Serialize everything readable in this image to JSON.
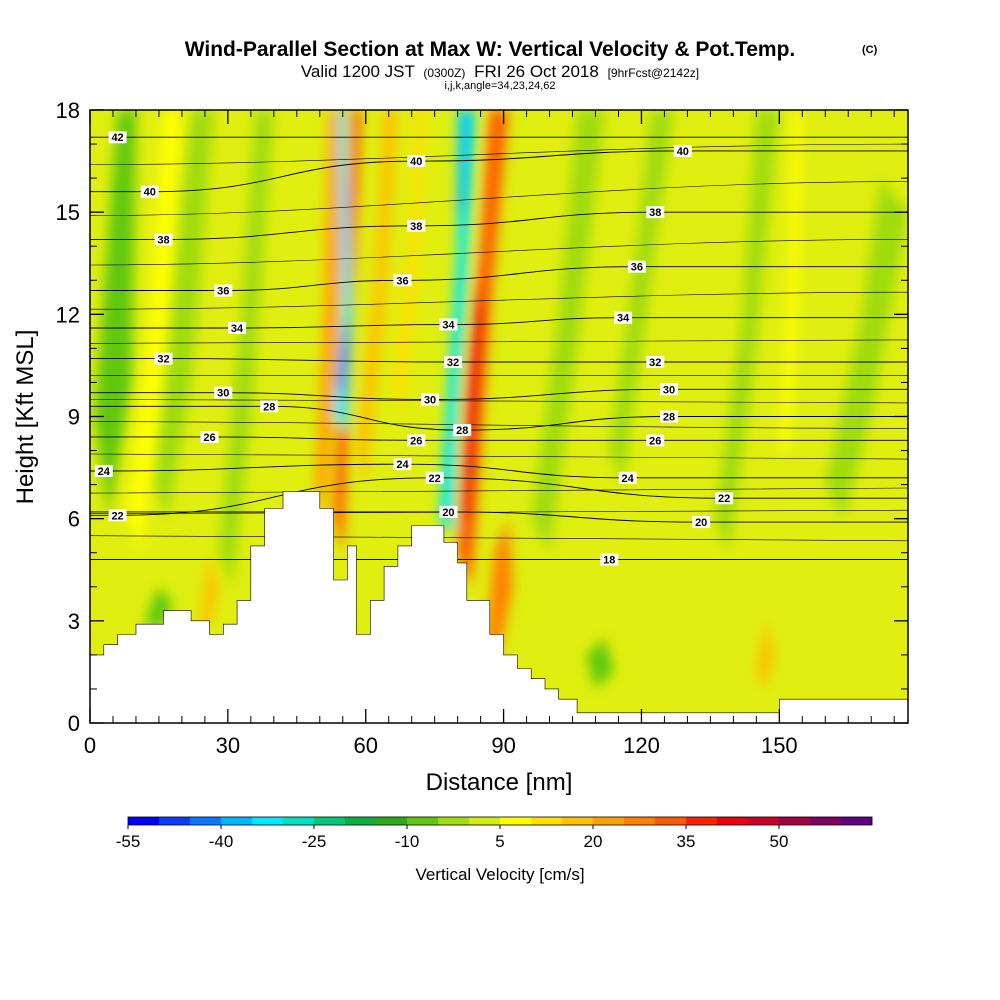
{
  "title": {
    "main": "Wind-Parallel Section at Max W: Vertical Velocity & Pot.Temp.",
    "copyright": "(C)",
    "line2_a": "Valid 1200 JST",
    "line2_b": "(0300Z)",
    "line2_c": "FRI 26 Oct 2018",
    "line2_d": "[9hrFcst@2142z]",
    "line3": "i,j,k,angle=34,23,24,62"
  },
  "chart_data": {
    "type": "heatmap",
    "xlabel": "Distance [nm]",
    "ylabel": "Height [Kft MSL]",
    "xlim": [
      0,
      178
    ],
    "ylim": [
      0,
      18
    ],
    "x_ticks": [
      0,
      30,
      60,
      90,
      120,
      150
    ],
    "y_ticks": [
      0,
      3,
      6,
      9,
      12,
      15,
      18
    ],
    "colorbar": {
      "label": "Vertical Velocity [cm/s]",
      "levels": [
        -55,
        -50,
        -45,
        -40,
        -35,
        -30,
        -25,
        -20,
        -15,
        -10,
        -5,
        0,
        5,
        10,
        15,
        20,
        25,
        30,
        35,
        40,
        45,
        50,
        55,
        60
      ],
      "tick_labels": [
        -55,
        -40,
        -25,
        -10,
        5,
        20,
        35,
        50
      ],
      "colors": [
        "#0000ff",
        "#0a3cff",
        "#0a78ff",
        "#00b4ff",
        "#00e8ff",
        "#00e0c0",
        "#00c878",
        "#10b040",
        "#30a820",
        "#60c810",
        "#a0dc10",
        "#d0ec10",
        "#ffff00",
        "#ffe000",
        "#ffc000",
        "#ffa000",
        "#ff8000",
        "#ff5a00",
        "#ff2000",
        "#e80010",
        "#c80028",
        "#a00040",
        "#800060",
        "#600080"
      ]
    },
    "terrain": [
      [
        0,
        2.0
      ],
      [
        3,
        2.0
      ],
      [
        3,
        2.3
      ],
      [
        6,
        2.3
      ],
      [
        6,
        2.6
      ],
      [
        10,
        2.6
      ],
      [
        10,
        2.9
      ],
      [
        16,
        2.9
      ],
      [
        16,
        3.3
      ],
      [
        22,
        3.3
      ],
      [
        22,
        3.0
      ],
      [
        26,
        3.0
      ],
      [
        26,
        2.6
      ],
      [
        29,
        2.6
      ],
      [
        29,
        2.9
      ],
      [
        32,
        2.9
      ],
      [
        32,
        3.6
      ],
      [
        35,
        3.6
      ],
      [
        35,
        5.2
      ],
      [
        38,
        5.2
      ],
      [
        38,
        6.3
      ],
      [
        42,
        6.3
      ],
      [
        42,
        6.8
      ],
      [
        47,
        6.8
      ],
      [
        47,
        6.8
      ],
      [
        50,
        6.8
      ],
      [
        50,
        6.3
      ],
      [
        53,
        6.3
      ],
      [
        53,
        4.2
      ],
      [
        56,
        4.2
      ],
      [
        56,
        5.2
      ],
      [
        58,
        5.2
      ],
      [
        58,
        2.6
      ],
      [
        61,
        2.6
      ],
      [
        61,
        3.6
      ],
      [
        64,
        3.6
      ],
      [
        64,
        4.6
      ],
      [
        67,
        4.6
      ],
      [
        67,
        5.2
      ],
      [
        70,
        5.2
      ],
      [
        70,
        5.8
      ],
      [
        74,
        5.8
      ],
      [
        74,
        5.8
      ],
      [
        77,
        5.8
      ],
      [
        77,
        5.3
      ],
      [
        80,
        5.3
      ],
      [
        80,
        4.7
      ],
      [
        82,
        4.7
      ],
      [
        82,
        3.6
      ],
      [
        87,
        3.6
      ],
      [
        87,
        2.6
      ],
      [
        90,
        2.6
      ],
      [
        90,
        2.0
      ],
      [
        93,
        2.0
      ],
      [
        93,
        1.6
      ],
      [
        96,
        1.6
      ],
      [
        96,
        1.3
      ],
      [
        99,
        1.3
      ],
      [
        99,
        1.0
      ],
      [
        102,
        1.0
      ],
      [
        102,
        0.7
      ],
      [
        106,
        0.7
      ],
      [
        106,
        0.3
      ],
      [
        150,
        0.3
      ],
      [
        150,
        0.7
      ],
      [
        178,
        0.7
      ]
    ],
    "isentropes": [
      {
        "label": "18",
        "pos": [
          113,
          4.8
        ]
      },
      {
        "label": "20",
        "pos": [
          78,
          6.2
        ]
      },
      {
        "label": "20",
        "pos": [
          133,
          5.9
        ]
      },
      {
        "label": "22",
        "pos": [
          6,
          6.1
        ]
      },
      {
        "label": "22",
        "pos": [
          75,
          7.2
        ]
      },
      {
        "label": "22",
        "pos": [
          138,
          6.6
        ]
      },
      {
        "label": "24",
        "pos": [
          3,
          7.4
        ]
      },
      {
        "label": "24",
        "pos": [
          68,
          7.6
        ]
      },
      {
        "label": "24",
        "pos": [
          117,
          7.2
        ]
      },
      {
        "label": "26",
        "pos": [
          26,
          8.4
        ]
      },
      {
        "label": "26",
        "pos": [
          71,
          8.3
        ]
      },
      {
        "label": "26",
        "pos": [
          123,
          8.3
        ]
      },
      {
        "label": "28",
        "pos": [
          39,
          9.3
        ]
      },
      {
        "label": "28",
        "pos": [
          81,
          8.6
        ]
      },
      {
        "label": "28",
        "pos": [
          126,
          9.0
        ]
      },
      {
        "label": "30",
        "pos": [
          29,
          9.7
        ]
      },
      {
        "label": "30",
        "pos": [
          74,
          9.5
        ]
      },
      {
        "label": "30",
        "pos": [
          126,
          9.8
        ]
      },
      {
        "label": "32",
        "pos": [
          16,
          10.7
        ]
      },
      {
        "label": "32",
        "pos": [
          79,
          10.6
        ]
      },
      {
        "label": "32",
        "pos": [
          123,
          10.6
        ]
      },
      {
        "label": "34",
        "pos": [
          32,
          11.6
        ]
      },
      {
        "label": "34",
        "pos": [
          78,
          11.7
        ]
      },
      {
        "label": "34",
        "pos": [
          116,
          11.9
        ]
      },
      {
        "label": "36",
        "pos": [
          29,
          12.7
        ]
      },
      {
        "label": "36",
        "pos": [
          68,
          13.0
        ]
      },
      {
        "label": "36",
        "pos": [
          119,
          13.4
        ]
      },
      {
        "label": "38",
        "pos": [
          16,
          14.2
        ]
      },
      {
        "label": "38",
        "pos": [
          71,
          14.6
        ]
      },
      {
        "label": "38",
        "pos": [
          123,
          15.0
        ]
      },
      {
        "label": "40",
        "pos": [
          13,
          15.6
        ]
      },
      {
        "label": "40",
        "pos": [
          71,
          16.5
        ]
      },
      {
        "label": "40",
        "pos": [
          129,
          16.8
        ]
      },
      {
        "label": "42",
        "pos": [
          6,
          17.2
        ]
      }
    ]
  }
}
